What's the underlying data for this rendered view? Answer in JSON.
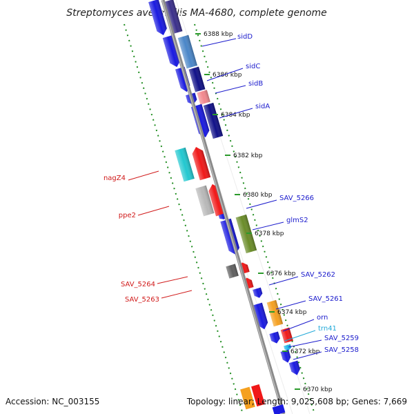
{
  "title": "Streptomyces avermitilis MA-4680, complete genome",
  "accession": "Accession: NC_003155",
  "topology": "Topology: linear; Length: 9,025,608 bp; Genes: 7,669",
  "colors": {
    "backbone": "#8a8a8a",
    "dots": "#1e8c1e",
    "label_right": "#1a1acc",
    "label_left": "#d01818",
    "label_trna": "#20a8d8"
  },
  "ticks": [
    "6388 kbp",
    "6386 kbp",
    "6384 kbp",
    "6382 kbp",
    "6380 kbp",
    "6378 kbp",
    "6376 kbp",
    "6374 kbp",
    "6372 kbp",
    "6370 kbp"
  ],
  "labels_right": [
    {
      "text": "sidD",
      "color": "#1a1acc"
    },
    {
      "text": "sidC",
      "color": "#1a1acc"
    },
    {
      "text": "sidB",
      "color": "#1a1acc"
    },
    {
      "text": "sidA",
      "color": "#1a1acc"
    },
    {
      "text": "SAV_5266",
      "color": "#1a1acc"
    },
    {
      "text": "glmS2",
      "color": "#1a1acc"
    },
    {
      "text": "SAV_5262",
      "color": "#1a1acc"
    },
    {
      "text": "SAV_5261",
      "color": "#1a1acc"
    },
    {
      "text": "orn",
      "color": "#1a1acc"
    },
    {
      "text": "trn41",
      "color": "#20a8d8"
    },
    {
      "text": "SAV_5259",
      "color": "#1a1acc"
    },
    {
      "text": "SAV_5258",
      "color": "#1a1acc"
    }
  ],
  "labels_left": [
    {
      "text": "nagZ4",
      "color": "#d01818"
    },
    {
      "text": "ppe2",
      "color": "#d01818"
    },
    {
      "text": "SAV_5264",
      "color": "#d01818"
    },
    {
      "text": "SAV_5263",
      "color": "#d01818"
    }
  ]
}
